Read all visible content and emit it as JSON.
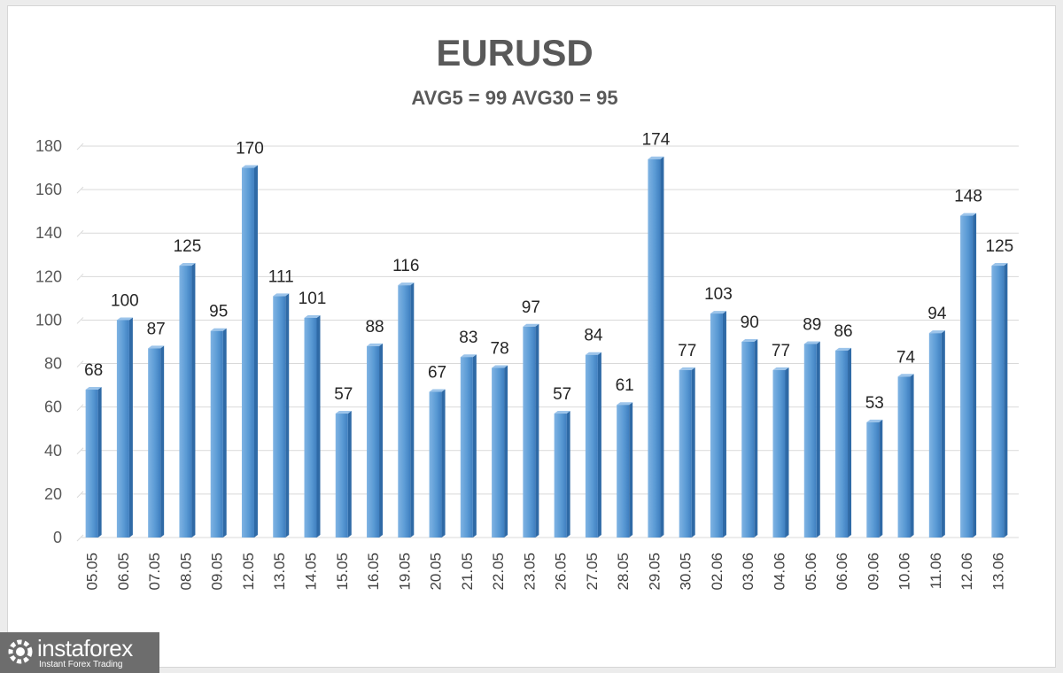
{
  "chart_data": {
    "type": "bar",
    "title": "EURUSD",
    "subtitle": "AVG5 = 99 AVG30 = 95",
    "categories": [
      "05.05",
      "06.05",
      "07.05",
      "08.05",
      "09.05",
      "12.05",
      "13.05",
      "14.05",
      "15.05",
      "16.05",
      "19.05",
      "20.05",
      "21.05",
      "22.05",
      "23.05",
      "26.05",
      "27.05",
      "28.05",
      "29.05",
      "30.05",
      "02.06",
      "03.06",
      "04.06",
      "05.06",
      "06.06",
      "09.06",
      "10.06",
      "11.06",
      "12.06",
      "13.06"
    ],
    "values": [
      68,
      100,
      87,
      125,
      95,
      170,
      111,
      101,
      57,
      88,
      116,
      67,
      83,
      78,
      97,
      57,
      84,
      61,
      174,
      77,
      103,
      90,
      77,
      89,
      86,
      53,
      74,
      94,
      148,
      125
    ],
    "yticks": [
      0,
      20,
      40,
      60,
      80,
      100,
      120,
      140,
      160,
      180
    ],
    "ylim": [
      0,
      180
    ],
    "grid": true,
    "data_labels": true,
    "bar_color": "#5b9bd5"
  },
  "watermark": {
    "name": "instaforex",
    "tagline": "Instant Forex Trading"
  }
}
